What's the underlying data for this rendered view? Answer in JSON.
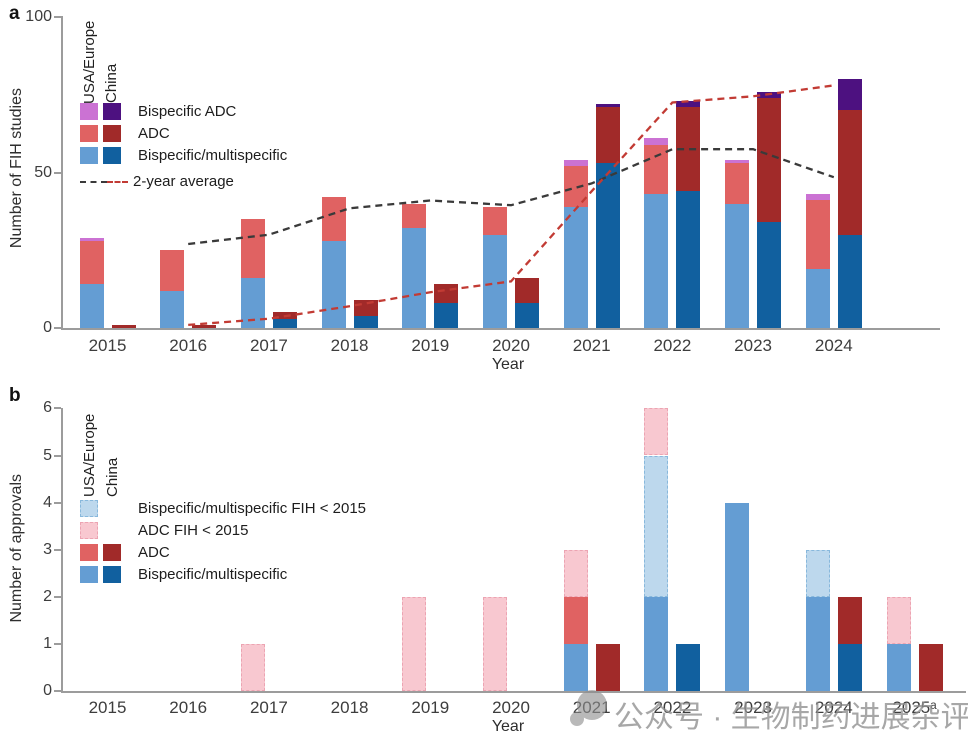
{
  "watermark": {
    "icon": "chat-bubble-icon",
    "text": "公众号 · 生物制药进展杂评"
  },
  "colors": {
    "usa_bispecific": "#649dd3",
    "china_bispecific": "#11609f",
    "usa_adc": "#e06262",
    "china_adc": "#a12a29",
    "usa_bispecific_adc": "#cb72d3",
    "china_bispecific_adc": "#4d1180",
    "usa_bispecific_fih_pre2015": "#bdd8ed",
    "usa_adc_fih_pre2015": "#f8c8d0",
    "usa_bispecific_fih_border": "#88b8dc",
    "usa_adc_fih_border": "#eca4b2",
    "usa_avg_line": "#3a3a3a",
    "china_avg_line": "#c23b34"
  },
  "panel_a": {
    "label": "a",
    "y_title": "Number of FIH studies",
    "x_title": "Year",
    "legend": {
      "col1": "USA/Europe",
      "col2": "China",
      "items": [
        "Bispecific ADC",
        "ADC",
        "Bispecific/multispecific"
      ],
      "avg_label": "2-year average"
    }
  },
  "panel_b": {
    "label": "b",
    "y_title": "Number of approvals",
    "x_title": "Year",
    "legend": {
      "col1": "USA/Europe",
      "col2": "China",
      "items": [
        "Bispecific/multispecific FIH < 2015",
        "ADC FIH < 2015",
        "ADC",
        "Bispecific/multispecific"
      ]
    }
  },
  "chart_data": [
    {
      "type": "bar",
      "panel": "a",
      "stacked": true,
      "grid": false,
      "x": [
        "2015",
        "2016",
        "2017",
        "2018",
        "2019",
        "2020",
        "2021",
        "2022",
        "2023",
        "2024"
      ],
      "ylim": [
        0,
        100
      ],
      "yticks": [
        0,
        50,
        100
      ],
      "ylabel": "Number of FIH studies",
      "xlabel": "Year",
      "series": [
        {
          "name": "USA/Europe Bispecific/multispecific",
          "values": [
            14,
            12,
            16,
            28,
            32,
            30,
            39,
            43,
            40,
            19
          ]
        },
        {
          "name": "USA/Europe ADC",
          "values": [
            14,
            13,
            19,
            14,
            8,
            9,
            13,
            16,
            13,
            22
          ]
        },
        {
          "name": "USA/Europe Bispecific ADC",
          "values": [
            1,
            0,
            0,
            0,
            0,
            0,
            2,
            2,
            1,
            2
          ]
        },
        {
          "name": "China Bispecific/multispecific",
          "values": [
            0,
            0,
            3,
            4,
            8,
            8,
            53,
            44,
            34,
            30
          ]
        },
        {
          "name": "China ADC",
          "values": [
            1,
            1,
            2,
            5,
            6,
            8,
            18,
            27,
            40,
            40
          ]
        },
        {
          "name": "China Bispecific ADC",
          "values": [
            0,
            0,
            0,
            0,
            0,
            0,
            1,
            2,
            2,
            10
          ]
        },
        {
          "name": "USA/Europe 2-year average",
          "type": "dashed-line",
          "x": [
            "2016",
            "2017",
            "2018",
            "2019",
            "2020",
            "2021",
            "2022",
            "2023",
            "2024"
          ],
          "values": [
            27,
            30,
            38.5,
            41,
            39.5,
            46.5,
            57.5,
            57.5,
            48.5
          ]
        },
        {
          "name": "China 2-year average",
          "type": "dashed-line",
          "x": [
            "2016",
            "2017",
            "2018",
            "2019",
            "2020",
            "2021",
            "2022",
            "2023",
            "2024"
          ],
          "values": [
            1,
            3,
            7,
            11.5,
            15,
            44,
            72.5,
            74.5,
            78
          ]
        }
      ]
    },
    {
      "type": "bar",
      "panel": "b",
      "stacked": true,
      "grid": false,
      "x": [
        "2015",
        "2016",
        "2017",
        "2018",
        "2019",
        "2020",
        "2021",
        "2022",
        "2023",
        "2024",
        "2025ᵃ"
      ],
      "ylim": [
        0,
        6
      ],
      "yticks": [
        0,
        1,
        2,
        3,
        4,
        5,
        6
      ],
      "ylabel": "Number of approvals",
      "xlabel": "Year",
      "series": [
        {
          "name": "USA/Europe Bispecific/multispecific",
          "values": [
            0,
            0,
            0,
            0,
            0,
            0,
            1,
            2,
            4,
            2,
            1
          ]
        },
        {
          "name": "USA/Europe ADC",
          "values": [
            0,
            0,
            0,
            0,
            0,
            0,
            1,
            0,
            0,
            0,
            0
          ]
        },
        {
          "name": "USA/Europe Bispecific/multispecific FIH < 2015",
          "values": [
            0,
            0,
            0,
            0,
            0,
            0,
            0,
            3,
            0,
            1,
            0
          ]
        },
        {
          "name": "USA/Europe ADC FIH < 2015",
          "values": [
            0,
            0,
            1,
            0,
            2,
            2,
            1,
            1,
            0,
            0,
            1
          ]
        },
        {
          "name": "China Bispecific/multispecific",
          "values": [
            0,
            0,
            0,
            0,
            0,
            0,
            0,
            1,
            0,
            1,
            0
          ]
        },
        {
          "name": "China ADC",
          "values": [
            0,
            0,
            0,
            0,
            0,
            0,
            1,
            0,
            0,
            1,
            1
          ]
        }
      ]
    }
  ]
}
